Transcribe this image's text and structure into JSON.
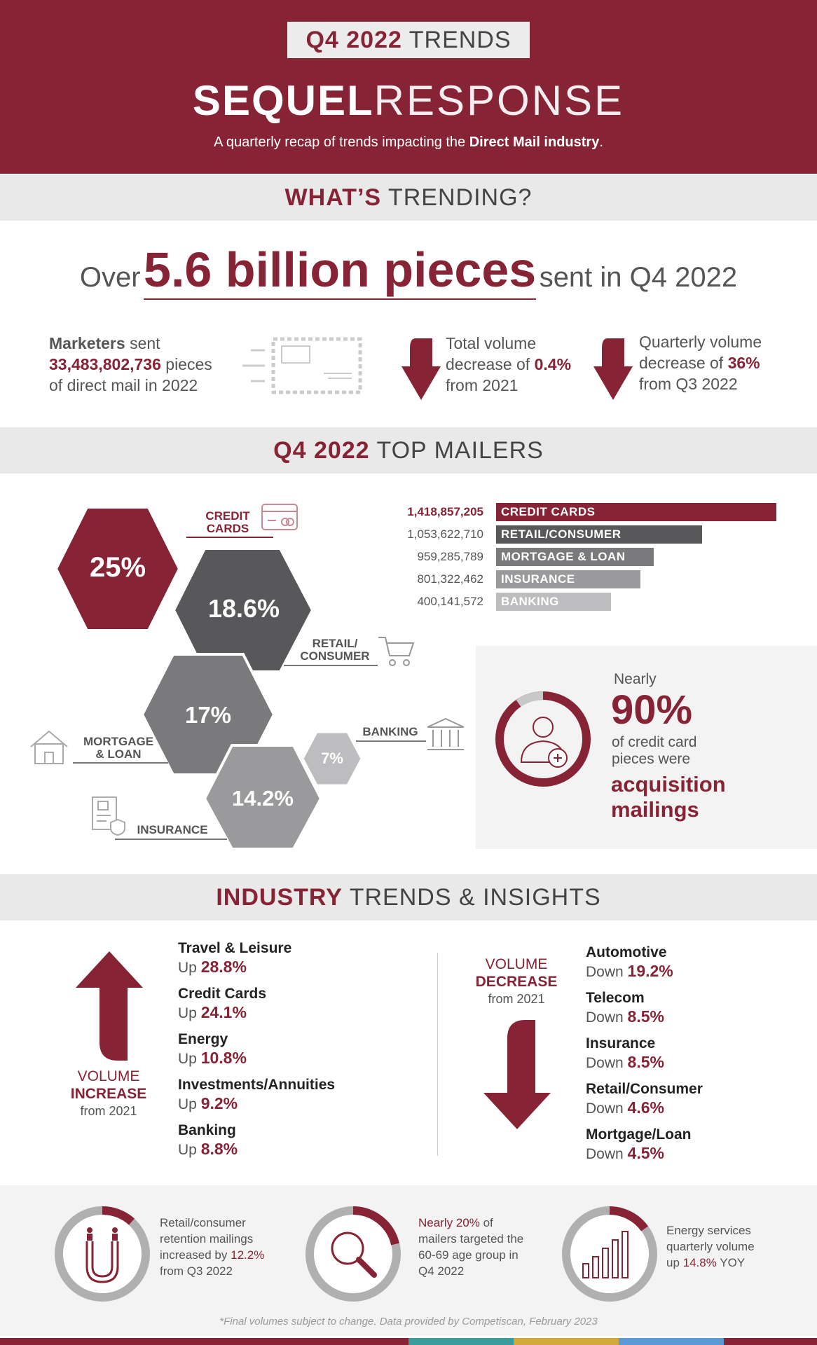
{
  "header": {
    "quarter_bold": "Q4 2022",
    "quarter_light": "TRENDS",
    "logo_heavy": "SEQUEL",
    "logo_light": "RESPONSE",
    "tagline_pre": "A quarterly recap of trends impacting the ",
    "tagline_bold": "Direct Mail industry",
    "tagline_post": "."
  },
  "trending": {
    "band_bold": "WHAT’S",
    "band_light": "TRENDING?",
    "headline_pre": "Over",
    "headline_big": "5.6 billion pieces",
    "headline_post": "sent in Q4 2022",
    "marketers_bold": "Marketers",
    "marketers_sent": " sent",
    "marketers_num": "33,483,802,736",
    "marketers_pieces": " pieces",
    "marketers_line3": "of direct mail in 2022",
    "total_line1": "Total volume",
    "total_pre": "decrease of ",
    "total_num": "0.4%",
    "total_line3": "from 2021",
    "quarterly_line1": "Quarterly volume",
    "quarterly_pre": "decrease of ",
    "quarterly_num": "36%",
    "quarterly_line3": "from Q3 2022"
  },
  "mailers": {
    "band_bold": "Q4 2022",
    "band_light": "TOP MAILERS",
    "hexes": {
      "credit": "25%",
      "retail": "18.6%",
      "mortgage": "17%",
      "insurance": "14.2%",
      "banking": "7%"
    },
    "labels": {
      "credit_1": "CREDIT",
      "credit_2": "CARDS",
      "retail_1": "RETAIL/",
      "retail_2": "CONSUMER",
      "mortgage_1": "MORTGAGE",
      "mortgage_2": "& LOAN",
      "insurance": "INSURANCE",
      "banking": "BANKING"
    },
    "bars": [
      {
        "value": "1,418,857,205",
        "label": "CREDIT CARDS",
        "color": "#862335"
      },
      {
        "value": "1,053,622,710",
        "label": "RETAIL/CONSUMER",
        "color": "#58585a"
      },
      {
        "value": "959,285,789",
        "label": "MORTGAGE & LOAN",
        "color": "#7a7a7c"
      },
      {
        "value": "801,322,462",
        "label": "INSURANCE",
        "color": "#9a9a9c"
      },
      {
        "value": "400,141,572",
        "label": "BANKING",
        "color": "#bdbdbf"
      }
    ],
    "acq_nearly": "Nearly",
    "acq_pct": "90%",
    "acq_line1": "of credit card",
    "acq_line2": "pieces were",
    "acq_bold1": "acquisition",
    "acq_bold2": "mailings"
  },
  "industry": {
    "band_bold": "INDUSTRY",
    "band_light": "TRENDS & INSIGHTS",
    "inc_label1": "VOLUME",
    "inc_label2": "INCREASE",
    "inc_label3": "from 2021",
    "dec_label1": "VOLUME",
    "dec_label2": "DECREASE",
    "dec_label3": "from 2021",
    "up_word": "Up",
    "down_word": "Down",
    "increases": [
      {
        "name": "Travel & Leisure",
        "pct": "28.8%"
      },
      {
        "name": "Credit Cards",
        "pct": "24.1%"
      },
      {
        "name": "Energy",
        "pct": "10.8%"
      },
      {
        "name": "Investments/Annuities",
        "pct": "9.2%"
      },
      {
        "name": "Banking",
        "pct": "8.8%"
      }
    ],
    "decreases": [
      {
        "name": "Automotive",
        "pct": "19.2%"
      },
      {
        "name": "Telecom",
        "pct": "8.5%"
      },
      {
        "name": "Insurance",
        "pct": "8.5%"
      },
      {
        "name": "Retail/Consumer",
        "pct": "4.6%"
      },
      {
        "name": "Mortgage/Loan",
        "pct": "4.5%"
      }
    ]
  },
  "bottom": {
    "s1_l1": "Retail/consumer",
    "s1_l2": "retention mailings",
    "s1_l3_pre": "increased by ",
    "s1_l3_hl": "12.2%",
    "s1_l4": "from Q3 2022",
    "s2_hl": "Nearly 20%",
    "s2_l1_post": " of",
    "s2_l2": "mailers targeted the",
    "s2_l3": "60-69 age group in",
    "s2_l4": "Q4 2022",
    "s3_l1": "Energy services",
    "s3_l2": "quarterly volume",
    "s3_l3_pre": "up ",
    "s3_l3_hl": "14.8%",
    "s3_l3_post": " YOY",
    "footnote": "*Final volumes subject to change. Data provided by Competiscan, February 2023"
  },
  "colors": {
    "brand": "#862335",
    "stripe": [
      "#862335",
      "#3b9b9b",
      "#d3a83a",
      "#5b9bd5"
    ]
  }
}
